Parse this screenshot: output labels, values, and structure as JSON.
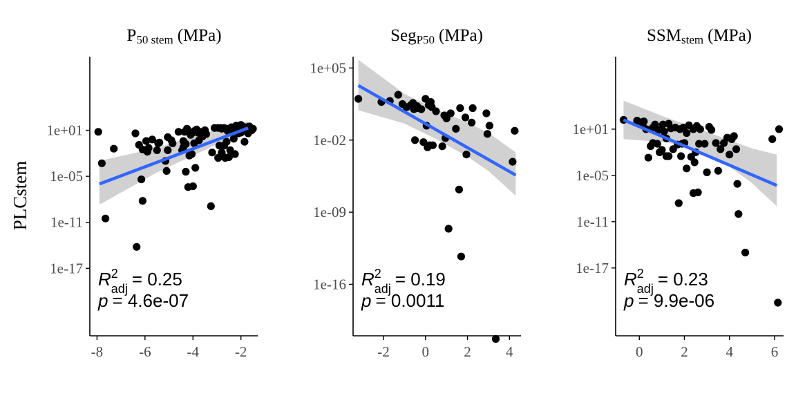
{
  "figure": {
    "ylabel": "PLCstem",
    "colors": {
      "points": "#000000",
      "fit_line": "#3366FF",
      "ci_band": "#BEBEBE",
      "axis": "#000000",
      "tick_label": "#4D4D4D"
    }
  },
  "chart_data": [
    {
      "type": "scatter",
      "title": "P",
      "title_sub": "50 stem",
      "title_units": "(MPa)",
      "x_scale": "linear",
      "y_scale": "log10",
      "xlim": [
        -8.3,
        -1.3
      ],
      "ylim_log10": [
        -25.8,
        10.6
      ],
      "xticks": [
        -8,
        -6,
        -4,
        -2
      ],
      "xtick_labels": [
        "-8",
        "-6",
        "-4",
        "-2"
      ],
      "yticks_log10": [
        1,
        -5,
        -11,
        -17
      ],
      "ytick_labels": [
        "1e+01",
        "1e-05",
        "1e-11",
        "1e-17"
      ],
      "stats": {
        "r2_label": "R",
        "r2_sup": "2",
        "r2_sub": "adj",
        "r2_value": "= 0.25",
        "p_label": "p",
        "p_value": "= 4.6e-07"
      },
      "fit": {
        "x": [
          -7.9,
          -1.7
        ],
        "log10y": [
          -6.0,
          1.3
        ]
      },
      "ci_band": {
        "x": [
          -7.9,
          -5.5,
          -3.8,
          -2.3,
          -1.7
        ],
        "upper_log10": [
          -3.0,
          -1.3,
          0.4,
          1.7,
          2.2
        ],
        "lower_log10": [
          -8.7,
          -4.5,
          -2.0,
          0.2,
          0.6
        ]
      },
      "points": {
        "x": [
          -7.95,
          -7.8,
          -7.65,
          -7.3,
          -6.35,
          -6.4,
          -6.25,
          -6.15,
          -6.1,
          -6.1,
          -5.95,
          -5.9,
          -5.85,
          -5.7,
          -5.5,
          -5.45,
          -5.4,
          -5.15,
          -5.1,
          -5.05,
          -5.05,
          -4.9,
          -4.85,
          -4.6,
          -4.45,
          -4.4,
          -4.4,
          -4.35,
          -4.3,
          -4.3,
          -4.25,
          -4.2,
          -4.15,
          -4.1,
          -4.05,
          -4.05,
          -4.0,
          -3.95,
          -3.95,
          -3.9,
          -3.85,
          -3.8,
          -3.75,
          -3.7,
          -3.6,
          -3.5,
          -3.45,
          -3.25,
          -3.2,
          -3.1,
          -2.95,
          -2.95,
          -2.9,
          -2.85,
          -2.8,
          -2.8,
          -2.75,
          -2.7,
          -2.7,
          -2.65,
          -2.6,
          -2.6,
          -2.55,
          -2.5,
          -2.5,
          -2.45,
          -2.4,
          -2.35,
          -2.3,
          -2.3,
          -2.25,
          -2.2,
          -2.15,
          -2.1,
          -2.1,
          -2.05,
          -2.0,
          -2.0,
          -1.95,
          -1.9,
          -1.85,
          -1.8,
          -1.75,
          -1.7,
          -1.65,
          -1.6,
          -1.55,
          -1.5
        ],
        "log10y": [
          0.8,
          -3.3,
          -10.5,
          -1.4,
          -14.2,
          0.6,
          -0.9,
          -5.4,
          -8.2,
          -1.5,
          -0.4,
          -1.8,
          -1.3,
          -0.2,
          -1.6,
          -0.7,
          -0.6,
          -3.0,
          -4.3,
          0.1,
          -1.6,
          -0.3,
          -0.7,
          0.8,
          -1.6,
          -0.4,
          -1.2,
          0.8,
          -4.4,
          -0.8,
          1.2,
          -6.4,
          -2.3,
          0.4,
          -2.1,
          0.6,
          -6.3,
          -0.7,
          0.9,
          -3.9,
          1.1,
          0.7,
          -0.3,
          0.8,
          0.2,
          1.0,
          0.5,
          -8.9,
          -1.9,
          1.3,
          -2.6,
          1.3,
          -1.0,
          1.3,
          1.2,
          -1.9,
          -2.4,
          -1.0,
          1.3,
          -2.6,
          1.2,
          -0.5,
          0.9,
          -2.5,
          1.0,
          -1.6,
          1.4,
          1.2,
          -0.1,
          1.1,
          -2.1,
          1.6,
          1.5,
          1.3,
          0.6,
          1.4,
          1.7,
          0.7,
          1.5,
          1.0,
          -0.5,
          1.4,
          1.2,
          0.6,
          1.5,
          1.3,
          1.0,
          1.2
        ]
      }
    },
    {
      "type": "scatter",
      "title": "Seg",
      "title_sub": "P50",
      "title_units": "(MPa)",
      "x_scale": "linear",
      "y_scale": "log10",
      "xlim": [
        -3.45,
        4.55
      ],
      "ylim_log10": [
        -21.0,
        6.1
      ],
      "xticks": [
        -2,
        0,
        2,
        4
      ],
      "xtick_labels": [
        "-2",
        "0",
        "2",
        "4"
      ],
      "yticks_log10": [
        5,
        -2,
        -9,
        -16
      ],
      "ytick_labels": [
        "1e+05",
        "1e-02",
        "1e-09",
        "1e-16"
      ],
      "stats": {
        "r2_label": "R",
        "r2_sup": "2",
        "r2_sub": "adj",
        "r2_value": "= 0.19",
        "p_label": "p",
        "p_value": "= 0.0011"
      },
      "fit": {
        "x": [
          -3.2,
          4.3
        ],
        "log10y": [
          3.3,
          -5.4
        ]
      },
      "ci_band": {
        "x": [
          -3.2,
          -1.0,
          0.5,
          2.0,
          3.0,
          4.3
        ],
        "upper_log10": [
          5.8,
          2.5,
          1.0,
          -0.3,
          -1.3,
          -3.2
        ],
        "lower_log10": [
          0.9,
          -0.4,
          -1.9,
          -3.6,
          -5.0,
          -7.4
        ]
      },
      "points": {
        "x": [
          -3.2,
          -2.1,
          -1.7,
          -1.3,
          -1.1,
          -0.9,
          -0.7,
          -0.6,
          -0.55,
          -0.5,
          -0.4,
          -0.35,
          -0.2,
          -0.1,
          0.0,
          0.05,
          0.1,
          0.15,
          0.2,
          0.25,
          0.3,
          0.35,
          0.5,
          0.8,
          0.9,
          0.95,
          1.0,
          1.1,
          1.2,
          1.45,
          1.6,
          1.65,
          1.7,
          1.9,
          1.95,
          2.2,
          2.25,
          2.9,
          2.95,
          3.05,
          3.35,
          4.15,
          4.25
        ],
        "log10y": [
          2.0,
          1.7,
          1.8,
          2.4,
          1.5,
          1.2,
          1.4,
          1.6,
          1.0,
          -2.0,
          1.3,
          1.1,
          1.0,
          -2.2,
          2.0,
          -0.6,
          -2.7,
          1.4,
          -2.5,
          1.7,
          1.2,
          -2.5,
          0.8,
          -2.6,
          0.4,
          -1.8,
          0.1,
          -10.6,
          0.6,
          -0.9,
          -6.8,
          1.1,
          -13.3,
          0.2,
          -3.4,
          -0.3,
          1.1,
          0.6,
          -1.4,
          -0.6,
          -21.3,
          -4.1,
          -1.1
        ]
      }
    },
    {
      "type": "scatter",
      "title": "SSM",
      "title_sub": "stem",
      "title_units": "(MPa)",
      "x_scale": "linear",
      "y_scale": "log10",
      "xlim": [
        -1.05,
        6.4
      ],
      "ylim_log10": [
        -25.8,
        10.4
      ],
      "xticks": [
        0,
        2,
        4,
        6
      ],
      "xtick_labels": [
        "0",
        "2",
        "4",
        "6"
      ],
      "yticks_log10": [
        1,
        -5,
        -11,
        -17
      ],
      "ytick_labels": [
        "1e+01",
        "1e-05",
        "1e-11",
        "1e-17"
      ],
      "stats": {
        "r2_label": "R",
        "r2_sup": "2",
        "r2_sub": "adj",
        "r2_value": "= 0.23",
        "p_label": "p",
        "p_value": "= 9.9e-06"
      },
      "fit": {
        "x": [
          -0.7,
          6.1
        ],
        "log10y": [
          2.2,
          -6.3
        ]
      },
      "ci_band": {
        "x": [
          -0.7,
          1.2,
          2.4,
          3.6,
          5.0,
          6.1
        ],
        "upper_log10": [
          4.7,
          2.5,
          1.3,
          0.0,
          -1.5,
          -2.3
        ],
        "lower_log10": [
          -0.3,
          -0.7,
          -1.5,
          -3.0,
          -6.0,
          -9.0
        ]
      },
      "points": {
        "x": [
          -0.7,
          -0.1,
          0.1,
          0.15,
          0.2,
          0.3,
          0.4,
          0.5,
          0.6,
          0.6,
          0.7,
          0.8,
          0.85,
          0.9,
          1.0,
          1.05,
          1.1,
          1.2,
          1.2,
          1.3,
          1.3,
          1.4,
          1.5,
          1.6,
          1.7,
          1.75,
          1.8,
          1.85,
          1.9,
          1.95,
          2.0,
          2.1,
          2.1,
          2.2,
          2.3,
          2.4,
          2.4,
          2.45,
          2.5,
          2.55,
          2.6,
          2.65,
          2.7,
          2.9,
          3.0,
          3.1,
          3.2,
          3.4,
          3.5,
          3.6,
          3.75,
          3.9,
          4.0,
          4.1,
          4.2,
          4.3,
          4.35,
          4.4,
          4.7,
          5.9,
          6.15,
          6.2
        ],
        "log10y": [
          2.2,
          2.1,
          1.9,
          1.5,
          2.0,
          1.0,
          -2.7,
          -1.2,
          1.2,
          -0.8,
          1.6,
          -0.9,
          0.9,
          -2.0,
          -1.7,
          1.6,
          0.7,
          -0.2,
          -2.5,
          1.7,
          -2.5,
          1.1,
          -1.6,
          1.2,
          -1.0,
          -8.6,
          1.0,
          -2.5,
          -0.9,
          1.2,
          -0.8,
          0.5,
          -4.1,
          1.5,
          -2.6,
          1.0,
          -7.3,
          -3.3,
          -2.0,
          1.4,
          -7.2,
          -0.9,
          1.0,
          -0.9,
          -4.6,
          1.3,
          0.9,
          -0.8,
          -4.4,
          -1.6,
          -0.8,
          -0.1,
          -2.3,
          -0.3,
          0.1,
          -1.6,
          -6.1,
          -10.0,
          -15.0,
          -0.3,
          -21.5,
          1.0
        ]
      }
    }
  ]
}
